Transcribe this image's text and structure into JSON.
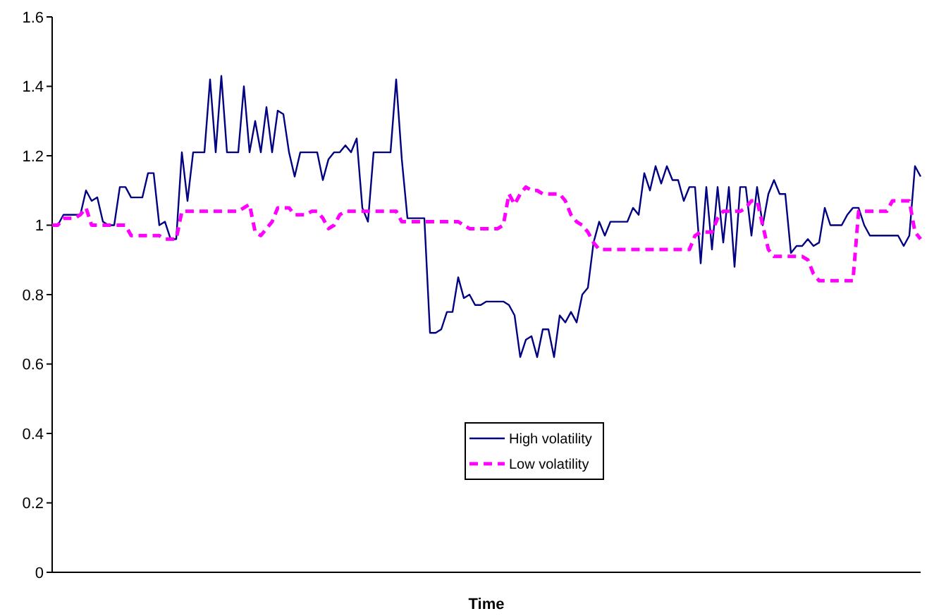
{
  "chart_data": {
    "type": "line",
    "xlabel": "Time",
    "ylim": [
      0,
      1.6
    ],
    "yticks": [
      0,
      0.2,
      0.4,
      0.6,
      0.8,
      1,
      1.2,
      1.4,
      1.6
    ],
    "grid": false,
    "legend": "bottom",
    "tick_labels": "y",
    "categories": [
      null,
      null,
      null,
      null,
      null,
      null,
      null,
      null,
      null,
      null,
      null,
      null,
      null,
      null,
      null,
      null,
      null,
      null,
      null,
      null,
      null,
      null,
      null,
      null,
      null,
      null,
      null,
      null,
      null,
      null,
      null,
      null,
      null,
      null,
      null,
      null,
      null,
      null,
      null,
      null,
      null,
      null,
      null,
      null,
      null,
      null,
      null,
      null,
      null,
      null,
      null,
      null,
      null,
      null,
      null,
      null,
      null,
      null,
      null,
      null,
      null,
      null,
      null,
      null,
      null,
      null,
      null,
      null,
      null,
      null,
      null,
      null,
      null,
      null,
      null,
      null,
      null,
      null,
      null,
      null,
      null,
      null,
      null,
      null,
      null,
      null,
      null,
      null,
      null,
      null,
      null,
      null,
      null,
      null,
      null,
      null,
      null,
      null,
      null,
      null,
      null,
      null,
      null,
      null,
      null,
      null,
      null,
      null,
      null,
      null,
      null,
      null,
      null,
      null,
      null,
      null,
      null,
      null,
      null,
      null,
      null,
      null,
      null,
      null,
      null,
      null,
      null,
      null,
      null,
      null,
      null,
      null,
      null,
      null,
      null,
      null,
      null,
      null,
      null,
      null,
      null,
      null,
      null,
      null,
      null,
      null,
      null,
      null,
      null,
      null,
      null,
      null,
      null,
      null,
      null
    ],
    "series": [
      {
        "name": "High volatility",
        "color": "#000080",
        "line_style": "solid",
        "values": [
          1.0,
          1.0,
          1.03,
          1.03,
          1.03,
          1.03,
          1.1,
          1.07,
          1.08,
          1.01,
          1.0,
          1.0,
          1.11,
          1.11,
          1.08,
          1.08,
          1.08,
          1.15,
          1.15,
          1.0,
          1.01,
          0.96,
          0.96,
          1.21,
          1.07,
          1.21,
          1.21,
          1.21,
          1.42,
          1.21,
          1.43,
          1.21,
          1.21,
          1.21,
          1.4,
          1.21,
          1.3,
          1.21,
          1.34,
          1.21,
          1.33,
          1.32,
          1.21,
          1.14,
          1.21,
          1.21,
          1.21,
          1.21,
          1.13,
          1.19,
          1.21,
          1.21,
          1.23,
          1.21,
          1.25,
          1.05,
          1.01,
          1.21,
          1.21,
          1.21,
          1.21,
          1.42,
          1.19,
          1.02,
          1.02,
          1.02,
          1.02,
          0.69,
          0.69,
          0.7,
          0.75,
          0.75,
          0.85,
          0.79,
          0.8,
          0.77,
          0.77,
          0.78,
          0.78,
          0.78,
          0.78,
          0.77,
          0.74,
          0.62,
          0.67,
          0.68,
          0.62,
          0.7,
          0.7,
          0.62,
          0.74,
          0.72,
          0.75,
          0.72,
          0.8,
          0.82,
          0.95,
          1.01,
          0.97,
          1.01,
          1.01,
          1.01,
          1.01,
          1.05,
          1.03,
          1.15,
          1.1,
          1.17,
          1.12,
          1.17,
          1.13,
          1.13,
          1.07,
          1.11,
          1.11,
          0.89,
          1.11,
          0.93,
          1.11,
          0.95,
          1.11,
          0.88,
          1.11,
          1.11,
          0.97,
          1.11,
          1.0,
          1.09,
          1.13,
          1.09,
          1.09,
          0.92,
          0.94,
          0.94,
          0.96,
          0.94,
          0.95,
          1.05,
          1.0,
          1.0,
          1.0,
          1.03,
          1.05,
          1.05,
          1.0,
          0.97,
          0.97,
          0.97,
          0.97,
          0.97,
          0.97,
          0.94,
          0.97,
          1.17,
          1.14
        ]
      },
      {
        "name": "Low volatility",
        "color": "#ff00ff",
        "line_style": "dashed",
        "values": [
          1.0,
          1.0,
          1.02,
          1.02,
          1.02,
          1.03,
          1.05,
          1.0,
          1.0,
          1.0,
          1.0,
          1.0,
          1.0,
          1.0,
          0.97,
          0.97,
          0.97,
          0.97,
          0.97,
          0.97,
          0.96,
          0.96,
          0.96,
          1.04,
          1.04,
          1.04,
          1.04,
          1.04,
          1.04,
          1.04,
          1.04,
          1.04,
          1.04,
          1.04,
          1.05,
          1.06,
          0.98,
          0.97,
          0.99,
          1.01,
          1.05,
          1.05,
          1.05,
          1.03,
          1.03,
          1.03,
          1.04,
          1.04,
          1.02,
          0.99,
          1.0,
          1.03,
          1.04,
          1.04,
          1.04,
          1.04,
          1.04,
          1.04,
          1.04,
          1.04,
          1.04,
          1.04,
          1.01,
          1.01,
          1.01,
          1.01,
          1.01,
          1.01,
          1.01,
          1.01,
          1.01,
          1.01,
          1.01,
          1.0,
          0.99,
          0.99,
          0.99,
          0.99,
          0.99,
          0.99,
          1.0,
          1.09,
          1.06,
          1.09,
          1.11,
          1.1,
          1.1,
          1.09,
          1.09,
          1.09,
          1.09,
          1.07,
          1.03,
          1.01,
          1.0,
          0.98,
          0.95,
          0.93,
          0.93,
          0.93,
          0.93,
          0.93,
          0.93,
          0.93,
          0.93,
          0.93,
          0.93,
          0.93,
          0.93,
          0.93,
          0.93,
          0.93,
          0.93,
          0.93,
          0.97,
          0.98,
          0.98,
          0.98,
          1.02,
          1.04,
          1.04,
          1.04,
          1.04,
          1.05,
          1.07,
          1.07,
          1.0,
          0.93,
          0.91,
          0.91,
          0.91,
          0.91,
          0.91,
          0.91,
          0.9,
          0.86,
          0.84,
          0.84,
          0.84,
          0.84,
          0.84,
          0.84,
          0.84,
          1.04,
          1.04,
          1.04,
          1.04,
          1.04,
          1.04,
          1.07,
          1.07,
          1.07,
          1.07,
          0.98,
          0.96
        ]
      }
    ]
  }
}
